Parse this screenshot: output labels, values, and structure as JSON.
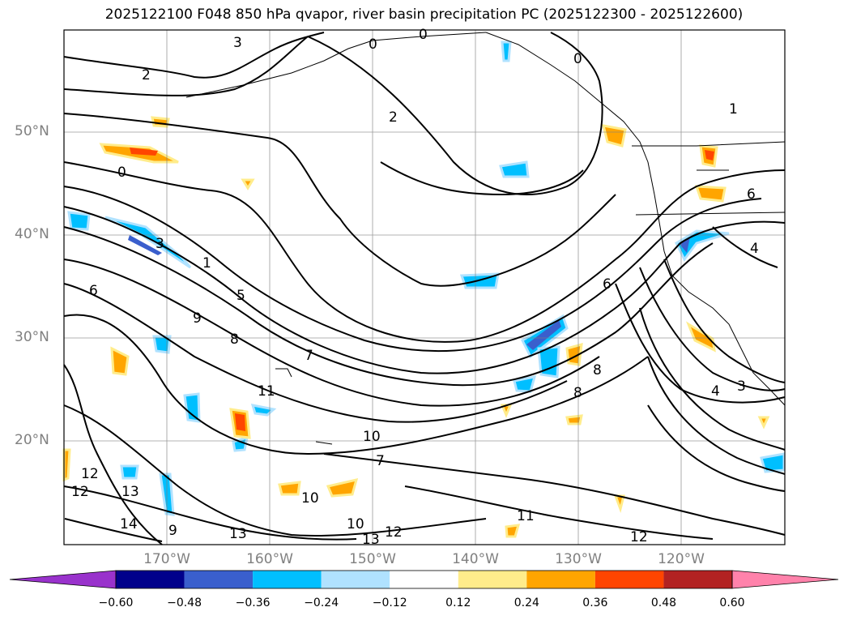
{
  "title": "2025122100 F048 850 hPa qvapor, river basin precipitation PC (2025122300 - 2025122600)",
  "map": {
    "lat_labels": [
      "50°N",
      "40°N",
      "30°N",
      "20°N"
    ],
    "lon_labels": [
      "170°W",
      "160°W",
      "150°W",
      "140°W",
      "130°W",
      "120°W"
    ],
    "contour_labels": [
      "3",
      "0",
      "0",
      "0",
      "2",
      "2",
      "1",
      "0",
      "6",
      "4",
      "3",
      "1",
      "6",
      "9",
      "8",
      "7",
      "11",
      "10",
      "7",
      "10",
      "12",
      "13",
      "14",
      "12",
      "9",
      "13",
      "10",
      "12",
      "13",
      "11",
      "8",
      "8",
      "6",
      "4",
      "3",
      "12",
      "5"
    ]
  },
  "colorbar": {
    "ticks": [
      "−0.60",
      "−0.48",
      "−0.36",
      "−0.24",
      "−0.12",
      "0.12",
      "0.24",
      "0.36",
      "0.48",
      "0.60"
    ],
    "colors": [
      "#9932cc",
      "#00008b",
      "#3a5fcd",
      "#00bfff",
      "#b0e2ff",
      "#ffffff",
      "#ffec8b",
      "#ffa500",
      "#ff4500",
      "#b22222",
      "#ff82ab"
    ]
  }
}
